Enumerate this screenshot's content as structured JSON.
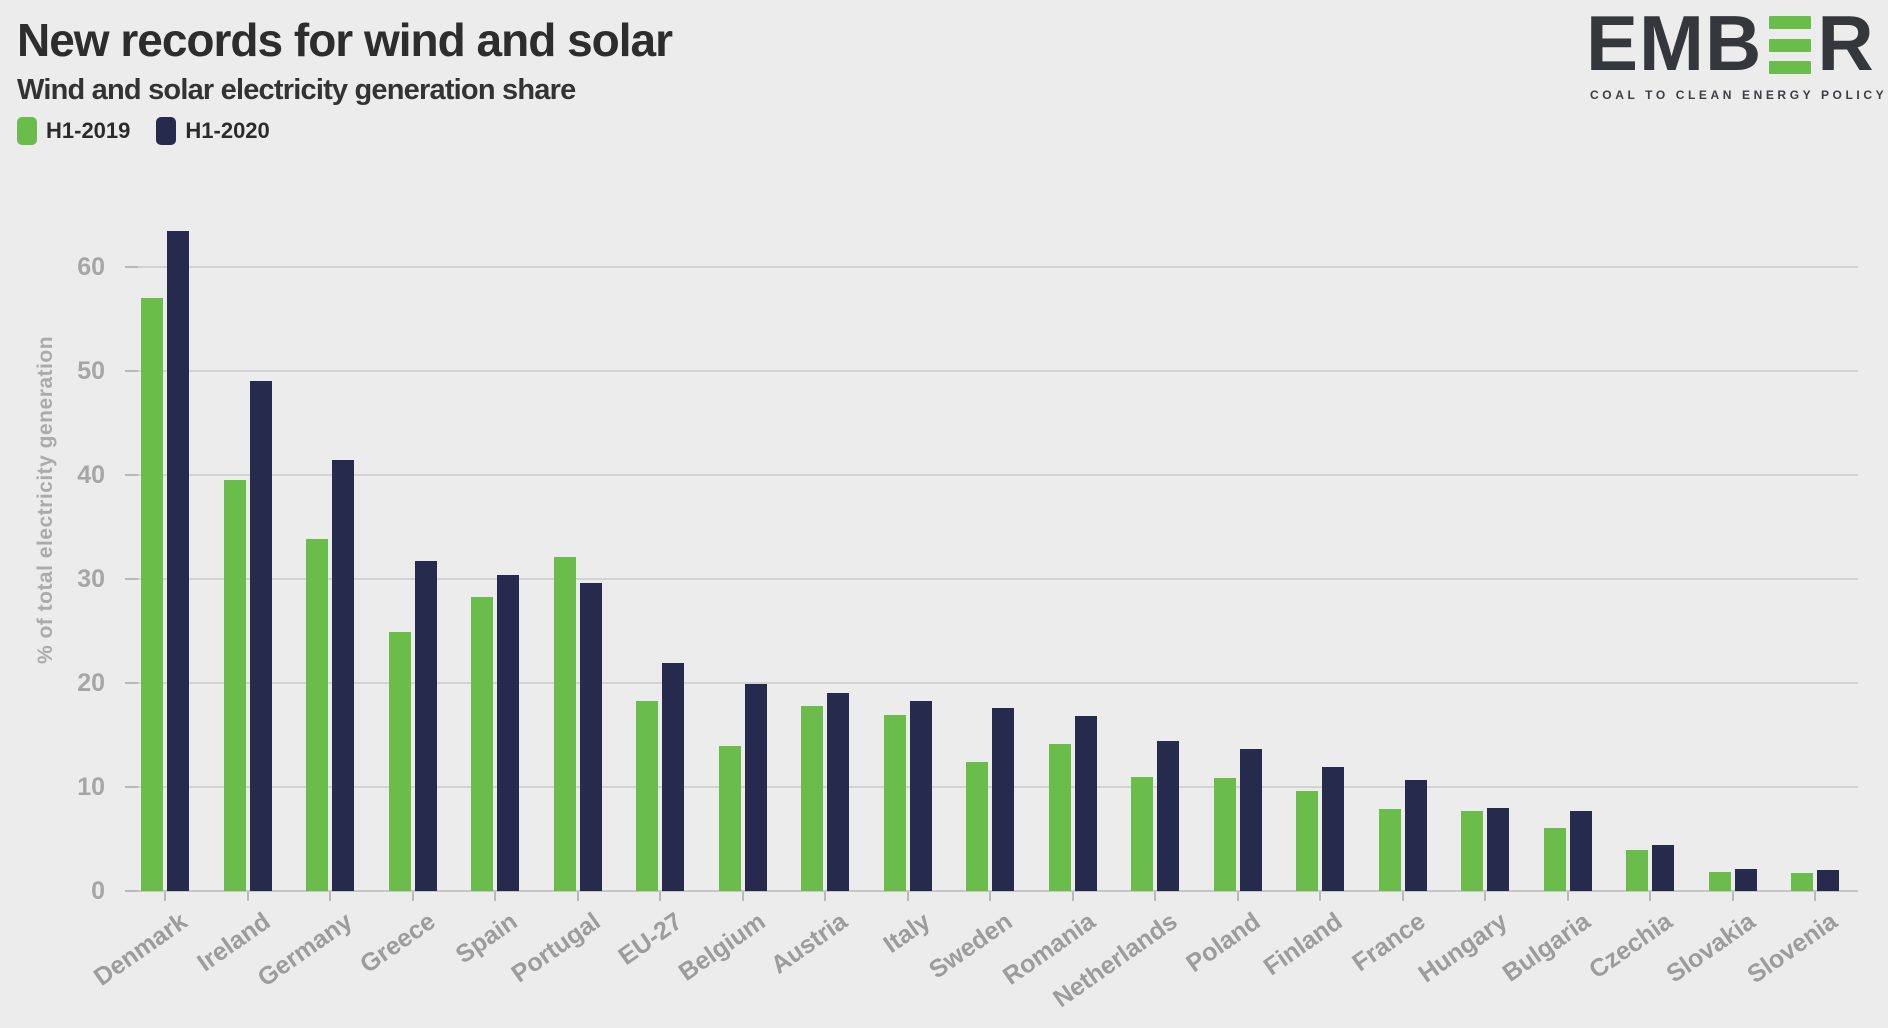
{
  "header": {
    "title": "New records for wind and solar",
    "subtitle": "Wind and solar electricity generation share"
  },
  "legend": {
    "items": [
      {
        "label": "H1-2019",
        "color": "#6bbd4b"
      },
      {
        "label": "H1-2020",
        "color": "#262a4c"
      }
    ]
  },
  "logo": {
    "wordmark_prefix": "EMB",
    "wordmark_suffix": "R",
    "tagline": "COAL TO CLEAN ENERGY POLICY",
    "bar_color": "#6bbd4b",
    "text_color": "#34373c"
  },
  "colors": {
    "background": "#ececec",
    "gridline": "#d3d3d3",
    "axis_number": "#a6a6a6",
    "category_label": "#9c9c9c",
    "series_2019": "#6bbd4b",
    "series_2020": "#262a4c"
  },
  "chart_data": {
    "type": "bar",
    "title": "New records for wind and solar",
    "subtitle": "Wind and solar electricity generation share",
    "ylabel": "% of total electricity generation",
    "xlabel": "",
    "ylim": [
      0,
      65
    ],
    "yticks": [
      0,
      10,
      20,
      30,
      40,
      50,
      60
    ],
    "grid": true,
    "legend_position": "top-left",
    "categories": [
      "Denmark",
      "Ireland",
      "Germany",
      "Greece",
      "Spain",
      "Portugal",
      "EU-27",
      "Belgium",
      "Austria",
      "Italy",
      "Sweden",
      "Romania",
      "Netherlands",
      "Poland",
      "Finland",
      "France",
      "Hungary",
      "Bulgaria",
      "Czechia",
      "Slovakia",
      "Slovenia"
    ],
    "series": [
      {
        "name": "H1-2019",
        "color": "#6bbd4b",
        "values": [
          57.0,
          39.5,
          33.8,
          24.9,
          28.3,
          32.1,
          18.3,
          13.9,
          17.8,
          16.9,
          12.4,
          14.1,
          11.0,
          10.9,
          9.6,
          7.9,
          7.7,
          6.1,
          3.9,
          1.8,
          1.7
        ]
      },
      {
        "name": "H1-2020",
        "color": "#262a4c",
        "values": [
          63.5,
          49.0,
          41.4,
          31.7,
          30.4,
          29.6,
          21.9,
          19.9,
          19.0,
          18.3,
          17.6,
          16.8,
          14.4,
          13.7,
          11.9,
          10.7,
          8.0,
          7.7,
          4.4,
          2.1,
          2.0
        ]
      }
    ]
  }
}
